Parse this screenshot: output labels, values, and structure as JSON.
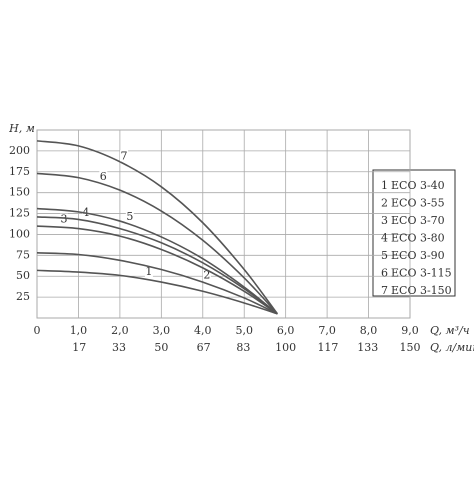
{
  "chart_data": {
    "type": "line",
    "y_label": "H, м",
    "x_label": "Q, м³/ч",
    "x2_label": "Q, л/мин",
    "x": [
      0,
      1,
      2,
      3,
      4,
      5,
      5.8
    ],
    "series": [
      {
        "id": "1",
        "name": "ECO 3-40",
        "color": "#555555",
        "values": [
          57,
          55,
          51,
          43,
          32,
          18,
          5
        ]
      },
      {
        "id": "2",
        "name": "ECO 3-55",
        "color": "#555555",
        "values": [
          78,
          76,
          69,
          58,
          43,
          24,
          5
        ]
      },
      {
        "id": "3",
        "name": "ECO 3-70",
        "color": "#555555",
        "values": [
          110,
          107,
          98,
          82,
          60,
          32,
          5
        ]
      },
      {
        "id": "4",
        "name": "ECO 3-80",
        "color": "#555555",
        "values": [
          121,
          118,
          107,
          90,
          66,
          35,
          5
        ]
      },
      {
        "id": "5",
        "name": "ECO 3-90",
        "color": "#555555",
        "values": [
          131,
          127,
          116,
          97,
          71,
          37,
          5
        ]
      },
      {
        "id": "6",
        "name": "ECO 3-115",
        "color": "#555555",
        "values": [
          173,
          168,
          153,
          128,
          93,
          48,
          5
        ]
      },
      {
        "id": "7",
        "name": "ECO 3-150",
        "color": "#555555",
        "values": [
          212,
          206,
          187,
          157,
          114,
          58,
          5
        ]
      }
    ],
    "xlim": [
      0,
      9
    ],
    "xticks": [
      0,
      {
        "value": 1,
        "label": "1,0"
      },
      {
        "value": 2,
        "label": "2,0"
      },
      {
        "value": 3,
        "label": "3,0"
      },
      {
        "value": 4,
        "label": "4,0"
      },
      {
        "value": 5,
        "label": "5,0"
      },
      {
        "value": 6,
        "label": "6,0"
      },
      {
        "value": 7,
        "label": "7,0"
      },
      {
        "value": 8,
        "label": "8,0"
      },
      {
        "value": 9,
        "label": "9,0"
      }
    ],
    "x2lim": [
      0,
      150
    ],
    "x2ticks": [
      17,
      33,
      50,
      67,
      83,
      100,
      117,
      133,
      150
    ],
    "ylim": [
      0,
      225
    ],
    "yticks": [
      25,
      50,
      75,
      100,
      125,
      150,
      175,
      200
    ],
    "grid": true
  }
}
